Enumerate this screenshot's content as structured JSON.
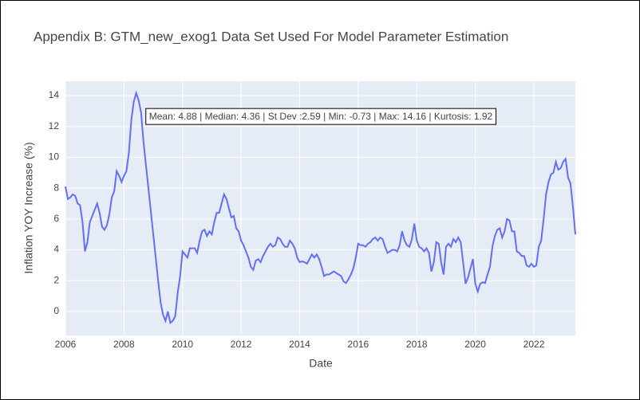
{
  "chart_data": {
    "type": "line",
    "title": "Appendix B: GTM_new_exog1 Data Set Used For Model Parameter Estimation",
    "xlabel": "Date",
    "ylabel": "Inflation YOY Increase (%)",
    "annotation": "Mean: 4.88 | Median: 4.36 | St Dev :2.59 | Min: -0.73 | Max: 14.16 | Kurtosis: 1.92",
    "grid": true,
    "xlim": [
      "2006-01",
      "2023-06"
    ],
    "xticks": [
      2006,
      2008,
      2010,
      2012,
      2014,
      2016,
      2018,
      2020,
      2022
    ],
    "ylim": [
      -1.55,
      14.93
    ],
    "yticks": [
      0,
      2,
      4,
      6,
      8,
      10,
      12,
      14
    ],
    "x": [
      "2006-01",
      "2006-02",
      "2006-03",
      "2006-04",
      "2006-05",
      "2006-06",
      "2006-07",
      "2006-08",
      "2006-09",
      "2006-10",
      "2006-11",
      "2006-12",
      "2007-01",
      "2007-02",
      "2007-03",
      "2007-04",
      "2007-05",
      "2007-06",
      "2007-07",
      "2007-08",
      "2007-09",
      "2007-10",
      "2007-11",
      "2007-12",
      "2008-01",
      "2008-02",
      "2008-03",
      "2008-04",
      "2008-05",
      "2008-06",
      "2008-07",
      "2008-08",
      "2008-09",
      "2008-10",
      "2008-11",
      "2008-12",
      "2009-01",
      "2009-02",
      "2009-03",
      "2009-04",
      "2009-05",
      "2009-06",
      "2009-07",
      "2009-08",
      "2009-09",
      "2009-10",
      "2009-11",
      "2009-12",
      "2010-01",
      "2010-02",
      "2010-03",
      "2010-04",
      "2010-05",
      "2010-06",
      "2010-07",
      "2010-08",
      "2010-09",
      "2010-10",
      "2010-11",
      "2010-12",
      "2011-01",
      "2011-02",
      "2011-03",
      "2011-04",
      "2011-05",
      "2011-06",
      "2011-07",
      "2011-08",
      "2011-09",
      "2011-10",
      "2011-11",
      "2011-12",
      "2012-01",
      "2012-02",
      "2012-03",
      "2012-04",
      "2012-05",
      "2012-06",
      "2012-07",
      "2012-08",
      "2012-09",
      "2012-10",
      "2012-11",
      "2012-12",
      "2013-01",
      "2013-02",
      "2013-03",
      "2013-04",
      "2013-05",
      "2013-06",
      "2013-07",
      "2013-08",
      "2013-09",
      "2013-10",
      "2013-11",
      "2013-12",
      "2014-01",
      "2014-02",
      "2014-03",
      "2014-04",
      "2014-05",
      "2014-06",
      "2014-07",
      "2014-08",
      "2014-09",
      "2014-10",
      "2014-11",
      "2014-12",
      "2015-01",
      "2015-02",
      "2015-03",
      "2015-04",
      "2015-05",
      "2015-06",
      "2015-07",
      "2015-08",
      "2015-09",
      "2015-10",
      "2015-11",
      "2015-12",
      "2016-01",
      "2016-02",
      "2016-03",
      "2016-04",
      "2016-05",
      "2016-06",
      "2016-07",
      "2016-08",
      "2016-09",
      "2016-10",
      "2016-11",
      "2016-12",
      "2017-01",
      "2017-02",
      "2017-03",
      "2017-04",
      "2017-05",
      "2017-06",
      "2017-07",
      "2017-08",
      "2017-09",
      "2017-10",
      "2017-11",
      "2017-12",
      "2018-01",
      "2018-02",
      "2018-03",
      "2018-04",
      "2018-05",
      "2018-06",
      "2018-07",
      "2018-08",
      "2018-09",
      "2018-10",
      "2018-11",
      "2018-12",
      "2019-01",
      "2019-02",
      "2019-03",
      "2019-04",
      "2019-05",
      "2019-06",
      "2019-07",
      "2019-08",
      "2019-09",
      "2019-10",
      "2019-11",
      "2019-12",
      "2020-01",
      "2020-02",
      "2020-03",
      "2020-04",
      "2020-05",
      "2020-06",
      "2020-07",
      "2020-08",
      "2020-09",
      "2020-10",
      "2020-11",
      "2020-12",
      "2021-01",
      "2021-02",
      "2021-03",
      "2021-04",
      "2021-05",
      "2021-06",
      "2021-07",
      "2021-08",
      "2021-09",
      "2021-10",
      "2021-11",
      "2021-12",
      "2022-01",
      "2022-02",
      "2022-03",
      "2022-04",
      "2022-05",
      "2022-06",
      "2022-07",
      "2022-08",
      "2022-09",
      "2022-10",
      "2022-11",
      "2022-12",
      "2023-01",
      "2023-02",
      "2023-03",
      "2023-04",
      "2023-05",
      "2023-06"
    ],
    "series": [
      {
        "color": "#636efa",
        "values": [
          8.1,
          7.3,
          7.4,
          7.6,
          7.5,
          7.0,
          6.9,
          5.8,
          3.9,
          4.5,
          5.8,
          6.2,
          6.6,
          7.0,
          6.4,
          5.5,
          5.3,
          5.6,
          6.3,
          7.4,
          7.8,
          9.1,
          8.8,
          8.4,
          8.8,
          9.1,
          10.3,
          12.4,
          13.6,
          14.16,
          13.7,
          12.9,
          11.0,
          9.5,
          8.0,
          6.5,
          5.0,
          3.5,
          2.0,
          0.6,
          -0.2,
          -0.6,
          0.0,
          -0.73,
          -0.6,
          -0.3,
          1.2,
          2.3,
          3.9,
          3.7,
          3.5,
          4.1,
          4.1,
          4.1,
          3.8,
          4.6,
          5.2,
          5.3,
          4.9,
          5.2,
          5.0,
          5.8,
          6.4,
          6.4,
          7.0,
          7.6,
          7.3,
          6.7,
          6.1,
          6.2,
          5.4,
          5.2,
          4.6,
          4.3,
          3.9,
          3.5,
          2.9,
          2.7,
          3.3,
          3.4,
          3.2,
          3.6,
          3.9,
          4.2,
          4.4,
          4.2,
          4.3,
          4.8,
          4.7,
          4.4,
          4.2,
          4.2,
          4.6,
          4.4,
          4.1,
          3.5,
          3.2,
          3.25,
          3.2,
          3.1,
          3.4,
          3.7,
          3.5,
          3.7,
          3.4,
          2.9,
          2.3,
          2.4,
          2.4,
          2.5,
          2.6,
          2.5,
          2.4,
          2.3,
          1.95,
          1.85,
          2.1,
          2.4,
          2.8,
          3.5,
          4.4,
          4.3,
          4.3,
          4.2,
          4.4,
          4.5,
          4.7,
          4.8,
          4.6,
          4.8,
          4.7,
          4.2,
          3.8,
          3.9,
          4.0,
          4.0,
          3.9,
          4.3,
          5.2,
          4.6,
          4.3,
          4.2,
          4.7,
          5.7,
          4.6,
          4.2,
          4.1,
          3.9,
          4.1,
          3.8,
          2.6,
          3.2,
          4.5,
          4.4,
          3.2,
          2.4,
          4.2,
          4.4,
          4.2,
          4.7,
          4.5,
          4.8,
          4.5,
          3.2,
          1.8,
          2.2,
          2.8,
          3.4,
          1.8,
          1.3,
          1.8,
          1.9,
          1.85,
          2.4,
          2.9,
          4.2,
          4.9,
          5.3,
          5.4,
          4.8,
          5.2,
          6.0,
          5.9,
          5.2,
          5.2,
          3.9,
          3.8,
          3.6,
          3.6,
          3.0,
          2.9,
          3.1,
          2.9,
          3.0,
          4.2,
          4.6,
          6.0,
          7.6,
          8.4,
          8.9,
          9.0,
          9.7,
          9.2,
          9.3,
          9.7,
          9.9,
          8.7,
          8.3,
          6.8,
          5.0
        ]
      }
    ]
  }
}
